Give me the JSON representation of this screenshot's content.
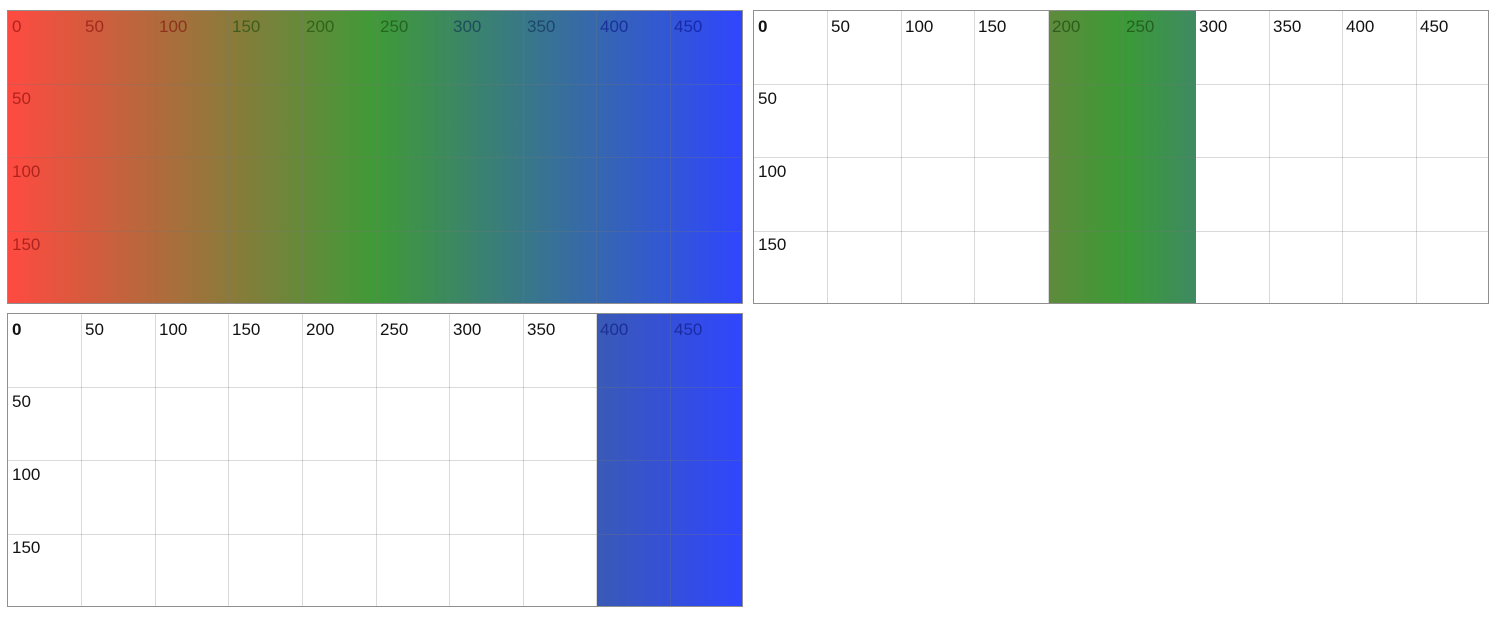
{
  "x_labels": [
    "0",
    "50",
    "100",
    "150",
    "200",
    "250",
    "300",
    "350",
    "400",
    "450"
  ],
  "y_labels": [
    "50",
    "100",
    "150"
  ],
  "panels": [
    {
      "id": "full-gradient",
      "fill_range": [
        0,
        500
      ],
      "colors": [
        "#ff4a40",
        "#3f9a37",
        "#2f45ff"
      ]
    },
    {
      "id": "green-segment",
      "fill_range": [
        200,
        300
      ],
      "colors": [
        "#5f8a3c",
        "#3b9b35",
        "#3e8a62"
      ]
    },
    {
      "id": "blue-segment",
      "fill_range": [
        400,
        500
      ],
      "colors": [
        "#3a5ab5",
        "#2f45ff"
      ]
    }
  ]
}
